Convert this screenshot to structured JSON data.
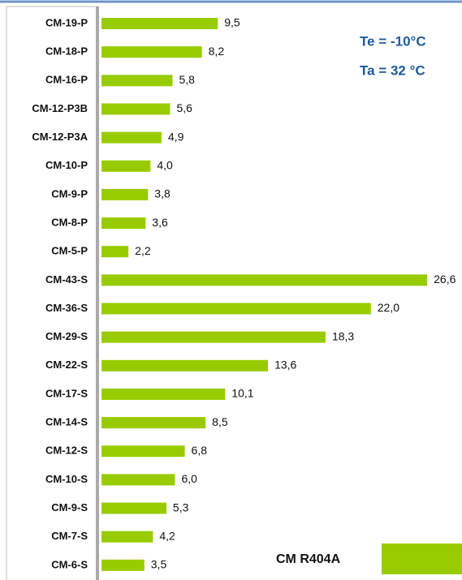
{
  "chart_data": {
    "type": "bar",
    "orientation": "horizontal",
    "annotations": [
      "Te = -10°C",
      "Ta = 32 °C"
    ],
    "categories": [
      "CM-19-P",
      "CM-18-P",
      "CM-16-P",
      "CM-12-P3B",
      "CM-12-P3A",
      "CM-10-P",
      "CM-9-P",
      "CM-8-P",
      "CM-5-P",
      "CM-43-S",
      "CM-36-S",
      "CM-29-S",
      "CM-22-S",
      "CM-17-S",
      "CM-14-S",
      "CM-12-S",
      "CM-10-S",
      "CM-9-S",
      "CM-7-S",
      "CM-6-S"
    ],
    "series": [
      {
        "name": "CM R404A",
        "color": "#99cc00",
        "values": [
          9.5,
          8.2,
          5.8,
          5.6,
          4.9,
          4.0,
          3.8,
          3.6,
          2.2,
          26.6,
          22.0,
          18.3,
          13.6,
          10.1,
          8.5,
          6.8,
          6.0,
          5.3,
          4.2,
          3.5
        ],
        "value_labels": [
          "9,5",
          "8,2",
          "5,8",
          "5,6",
          "4,9",
          "4,0",
          "3,8",
          "3,6",
          "2,2",
          "26,6",
          "22,0",
          "18,3",
          "13,6",
          "10,1",
          "8,5",
          "6,8",
          "6,0",
          "5,3",
          "4,2",
          "3,5"
        ]
      }
    ],
    "xlim": [
      0,
      30
    ],
    "legend": "lower right"
  }
}
